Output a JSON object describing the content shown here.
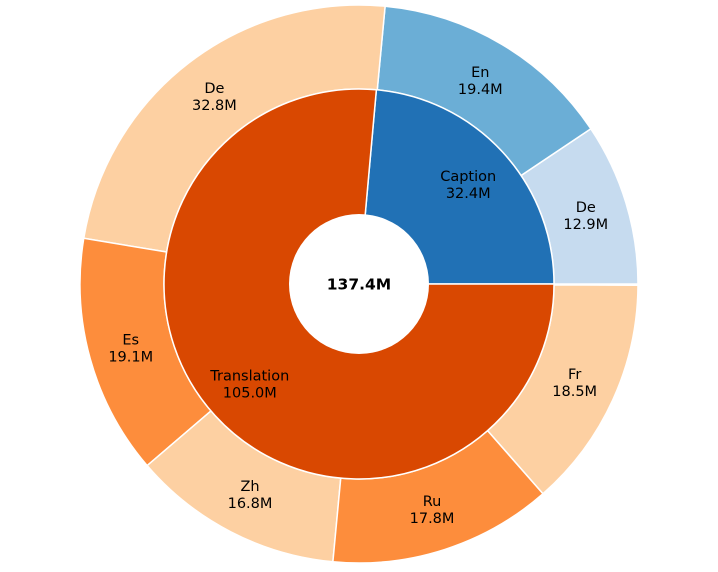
{
  "chart_data": {
    "type": "sunburst",
    "center_label": "137.4M",
    "start_angle_deg": 0,
    "direction": "counterclockwise",
    "inner_ring": [
      {
        "label": "Caption",
        "value_label": "32.4M",
        "value": 32.4,
        "color": "#2171b5"
      },
      {
        "label": "Translation",
        "value_label": "105.0M",
        "value": 105.0,
        "color": "#d94801"
      }
    ],
    "outer_ring": [
      {
        "parent": "Caption",
        "label": "De",
        "value_label": "12.9M",
        "value": 12.9,
        "color": "#c6dbef"
      },
      {
        "parent": "Caption",
        "label": "En",
        "value_label": "19.4M",
        "value": 19.4,
        "color": "#6baed6"
      },
      {
        "parent": "Translation",
        "label": "De",
        "value_label": "32.8M",
        "value": 32.8,
        "color": "#fdd0a2"
      },
      {
        "parent": "Translation",
        "label": "Es",
        "value_label": "19.1M",
        "value": 19.1,
        "color": "#fd8d3c"
      },
      {
        "parent": "Translation",
        "label": "Zh",
        "value_label": "16.8M",
        "value": 16.8,
        "color": "#fdd0a2"
      },
      {
        "parent": "Translation",
        "label": "Ru",
        "value_label": "17.8M",
        "value": 17.8,
        "color": "#fd8d3c"
      },
      {
        "parent": "Translation",
        "label": "Fr",
        "value_label": "18.5M",
        "value": 18.5,
        "color": "#fdd0a2"
      }
    ]
  }
}
